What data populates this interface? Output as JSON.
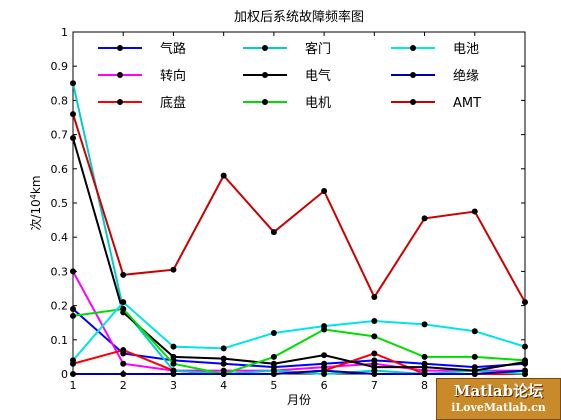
{
  "chart_data": {
    "type": "line",
    "title": "加权后系统故障频率图",
    "xlabel": "月份",
    "ylabel_prefix": "次/10",
    "ylabel_sup": "4",
    "ylabel_suffix": "km",
    "x": [
      1,
      2,
      3,
      4,
      5,
      6,
      7,
      8,
      9,
      10
    ],
    "xlim": [
      1,
      10
    ],
    "ylim": [
      0,
      1
    ],
    "xticks": [
      "1",
      "2",
      "3",
      "4",
      "5",
      "6",
      "7",
      "8",
      "9",
      "10"
    ],
    "yticks": [
      "0",
      "0.1",
      "0.2",
      "0.3",
      "0.4",
      "0.5",
      "0.6",
      "0.7",
      "0.8",
      "0.9",
      "1"
    ],
    "grid": false,
    "legend_position": "top",
    "series": [
      {
        "name": "气路",
        "color": "#0000ff",
        "values": [
          0.19,
          0.06,
          0.04,
          0.03,
          0.02,
          0.03,
          0.04,
          0.03,
          0.02,
          0.03
        ]
      },
      {
        "name": "转向",
        "color": "#ff00ff",
        "values": [
          0.3,
          0.03,
          0.01,
          0.01,
          0.01,
          0.02,
          0.03,
          0.01,
          0.01,
          0.01
        ]
      },
      {
        "name": "底盘",
        "color": "#ff0000",
        "values": [
          0.03,
          0.07,
          0.01,
          0.0,
          0.0,
          0.01,
          0.06,
          0.0,
          0.0,
          0.0
        ]
      },
      {
        "name": "客门",
        "color": "#00cccc",
        "values": [
          0.85,
          0.19,
          0.01,
          0.0,
          0.01,
          0.0,
          0.01,
          0.0,
          0.01,
          0.0
        ]
      },
      {
        "name": "电气",
        "color": "#000000",
        "values": [
          0.69,
          0.18,
          0.05,
          0.045,
          0.03,
          0.055,
          0.02,
          0.02,
          0.01,
          0.035
        ]
      },
      {
        "name": "电机",
        "color": "#00dd00",
        "values": [
          0.17,
          0.19,
          0.03,
          0.0,
          0.05,
          0.13,
          0.11,
          0.05,
          0.05,
          0.04
        ]
      },
      {
        "name": "电池",
        "color": "#00e5e5",
        "values": [
          0.04,
          0.21,
          0.08,
          0.075,
          0.12,
          0.14,
          0.155,
          0.145,
          0.125,
          0.08
        ]
      },
      {
        "name": "绝缘",
        "color": "#0000aa",
        "values": [
          0.0,
          0.0,
          0.0,
          0.0,
          0.0,
          0.01,
          0.0,
          0.0,
          0.0,
          0.01
        ]
      },
      {
        "name": "AMT",
        "color": "#cc0000",
        "values": [
          0.76,
          0.29,
          0.305,
          0.58,
          0.415,
          0.535,
          0.225,
          0.455,
          0.475,
          0.21
        ]
      }
    ]
  },
  "watermark": {
    "line1": "Matlab论坛",
    "line2": "iLoveMatlab.cn"
  }
}
